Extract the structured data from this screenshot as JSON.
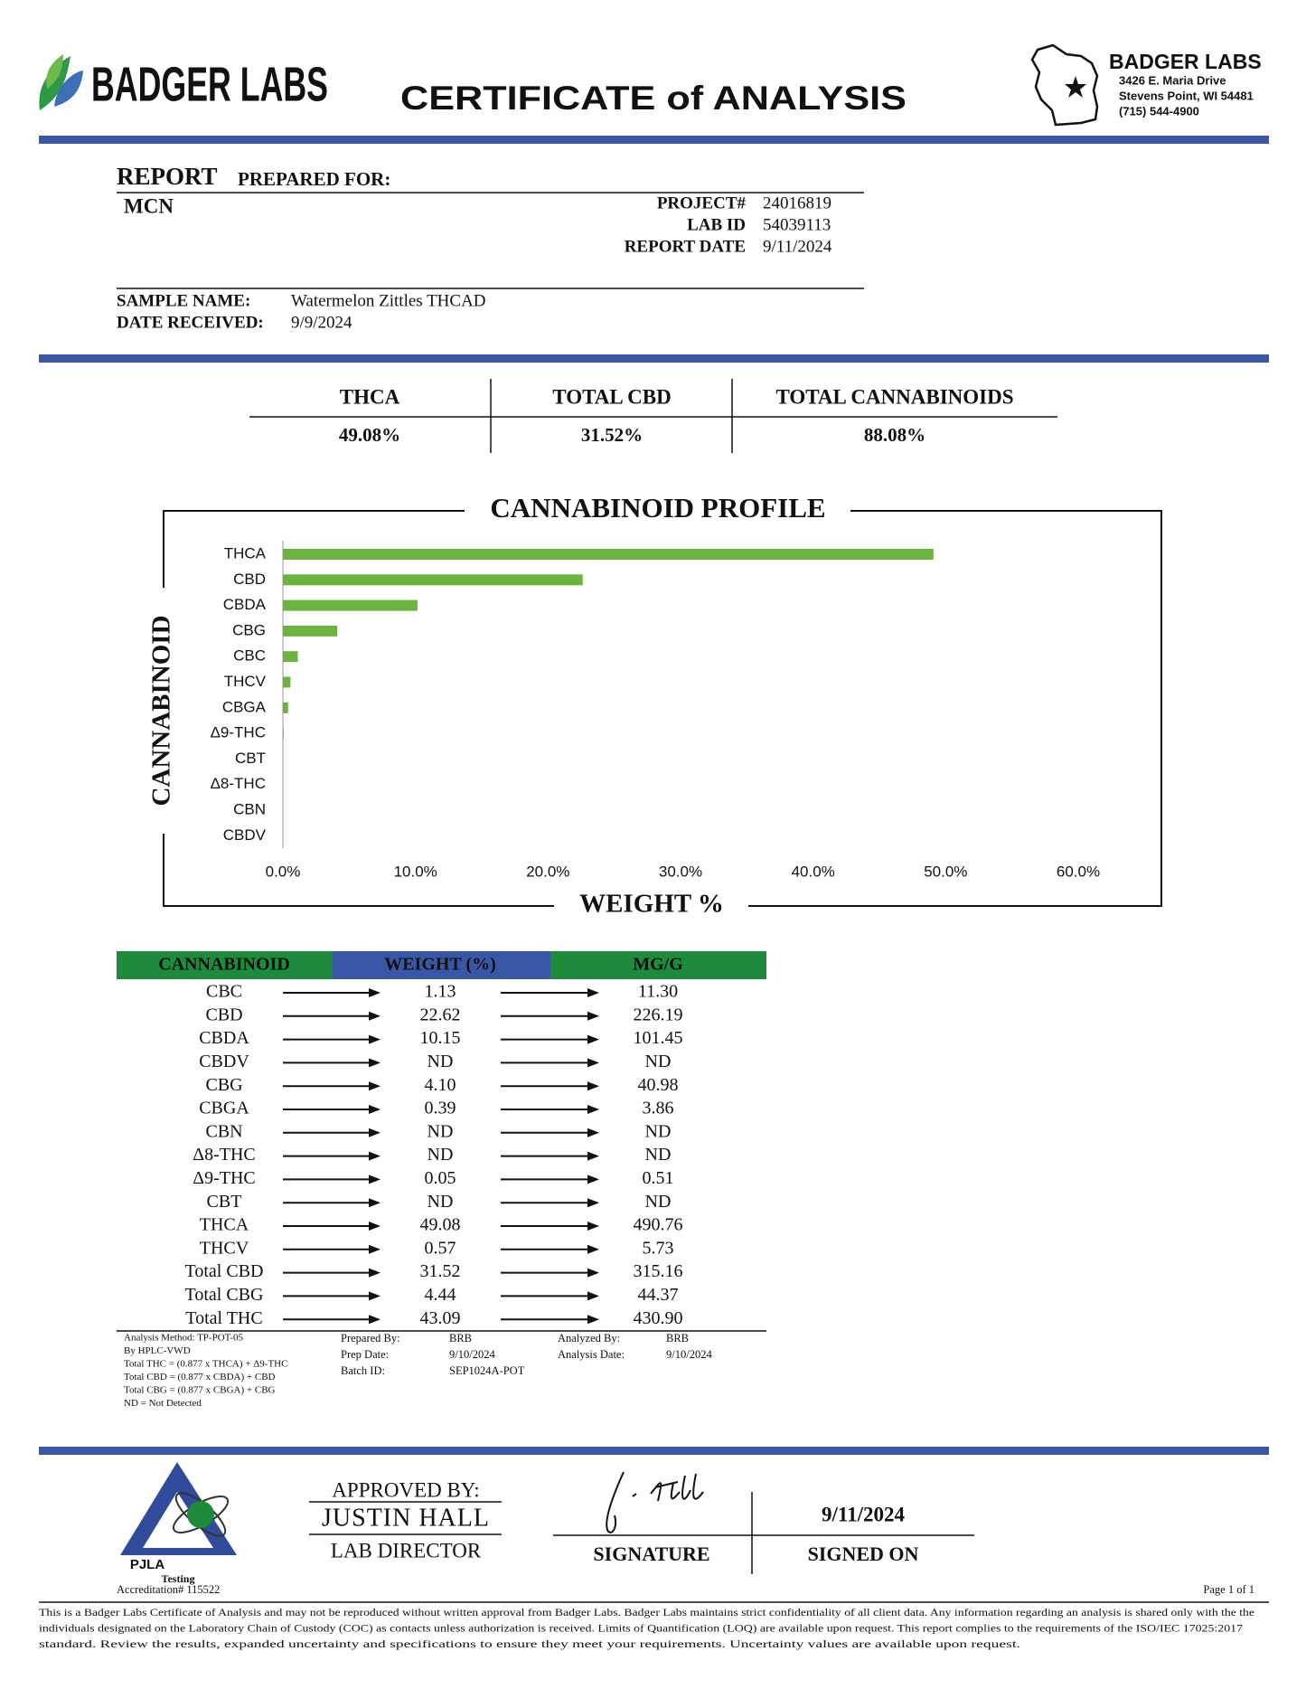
{
  "header": {
    "logo_text": "BADGER LABS",
    "title": "CERTIFICATE of ANALYSIS",
    "lab_name": "BADGER LABS",
    "address": [
      "3426 E. Maria Drive",
      "Stevens Point, WI 54481",
      "(715) 544-4900"
    ]
  },
  "report": {
    "heading": "REPORT",
    "subheading": "PREPARED FOR:",
    "client": "MCN",
    "fields": [
      {
        "label": "PROJECT#",
        "value": "24016819"
      },
      {
        "label": "LAB ID",
        "value": "54039113"
      },
      {
        "label": "REPORT DATE",
        "value": "9/11/2024"
      }
    ],
    "sample": [
      {
        "label": "SAMPLE NAME:",
        "value": "Watermelon Zittles THCAD"
      },
      {
        "label": "DATE RECEIVED:",
        "value": "9/9/2024"
      }
    ]
  },
  "summary": {
    "columns": [
      "THCA",
      "TOTAL CBD",
      "TOTAL CANNABINOIDS"
    ],
    "values": [
      "49.08%",
      "31.52%",
      "88.08%"
    ]
  },
  "chart_data": {
    "type": "bar",
    "orientation": "horizontal",
    "title": "CANNABINOID PROFILE",
    "x_label": "WEIGHT %",
    "y_label": "CANNABINOID",
    "categories": [
      "THCA",
      "CBD",
      "CBDA",
      "CBG",
      "CBC",
      "THCV",
      "CBGA",
      "Δ9-THC",
      "CBT",
      "Δ8-THC",
      "CBN",
      "CBDV"
    ],
    "values": [
      49.08,
      22.62,
      10.15,
      4.1,
      1.13,
      0.57,
      0.39,
      0.05,
      0,
      0,
      0,
      0
    ],
    "color": "#6db33f",
    "grid": false,
    "xlim": [
      0,
      60
    ],
    "xticks": [
      {
        "value": 0,
        "label": "0.0%"
      },
      {
        "value": 10,
        "label": "10.0%"
      },
      {
        "value": 20,
        "label": "20.0%"
      },
      {
        "value": 30,
        "label": "30.0%"
      },
      {
        "value": 40,
        "label": "40.0%"
      },
      {
        "value": 50,
        "label": "50.0%"
      },
      {
        "value": 60,
        "label": "60.0%"
      }
    ]
  },
  "table": {
    "columns": [
      "CANNABINOID",
      "WEIGHT (%)",
      "MG/G"
    ],
    "rows": [
      [
        "CBC",
        "1.13",
        "11.30"
      ],
      [
        "CBD",
        "22.62",
        "226.19"
      ],
      [
        "CBDA",
        "10.15",
        "101.45"
      ],
      [
        "CBDV",
        "ND",
        "ND"
      ],
      [
        "CBG",
        "4.10",
        "40.98"
      ],
      [
        "CBGA",
        "0.39",
        "3.86"
      ],
      [
        "CBN",
        "ND",
        "ND"
      ],
      [
        "Δ8-THC",
        "ND",
        "ND"
      ],
      [
        "Δ9-THC",
        "0.05",
        "0.51"
      ],
      [
        "CBT",
        "ND",
        "ND"
      ],
      [
        "THCA",
        "49.08",
        "490.76"
      ],
      [
        "THCV",
        "0.57",
        "5.73"
      ],
      [
        "Total CBD",
        "31.52",
        "315.16"
      ],
      [
        "Total CBG",
        "4.44",
        "44.37"
      ],
      [
        "Total THC",
        "43.09",
        "430.90"
      ]
    ]
  },
  "notes": {
    "method": [
      "Analysis Method: TP-POT-05",
      "By HPLC-VWD",
      "Total THC = (0.877 x  THCA) + Δ9-THC",
      "Total CBD = (0.877 x  CBDA) + CBD",
      "Total CBG = (0.877 x  CBGA) + CBG",
      "ND = Not Detected"
    ],
    "prep": [
      {
        "label": "Prepared By:",
        "value": "BRB"
      },
      {
        "label": "Prep Date:",
        "value": "9/10/2024"
      },
      {
        "label": "Batch ID:",
        "value": "SEP1024A-POT"
      }
    ],
    "analysis": [
      {
        "label": "Analyzed By:",
        "value": "BRB"
      },
      {
        "label": "Analysis Date:",
        "value": "9/10/2024"
      }
    ]
  },
  "accreditation": {
    "name": "PJLA",
    "type": "Testing",
    "number": "Accreditation# 115522"
  },
  "approval": {
    "label": "APPROVED BY:",
    "name": "JUSTIN HALL",
    "role": "LAB DIRECTOR",
    "signature_label": "SIGNATURE",
    "date": "9/11/2024",
    "date_label": "SIGNED ON"
  },
  "page": "Page 1 of 1",
  "disclaimer": [
    "This is a Badger Labs Certificate of Analysis and may not be reproduced without written approval from Badger Labs. Badger Labs maintains strict confidentiality of all client data. Any information regarding an analysis is shared only with the the",
    "individuals designated on the Laboratory Chain of Custody (COC) as contacts unless authorization is received. Limits of Quantification (LOQ) are available upon request. This report complies to the requirements of the ISO/IEC 17025:2017",
    "standard. Review the results, expanded uncertainty and specifications to ensure they meet your requirements. Uncertainty values are available upon request."
  ]
}
